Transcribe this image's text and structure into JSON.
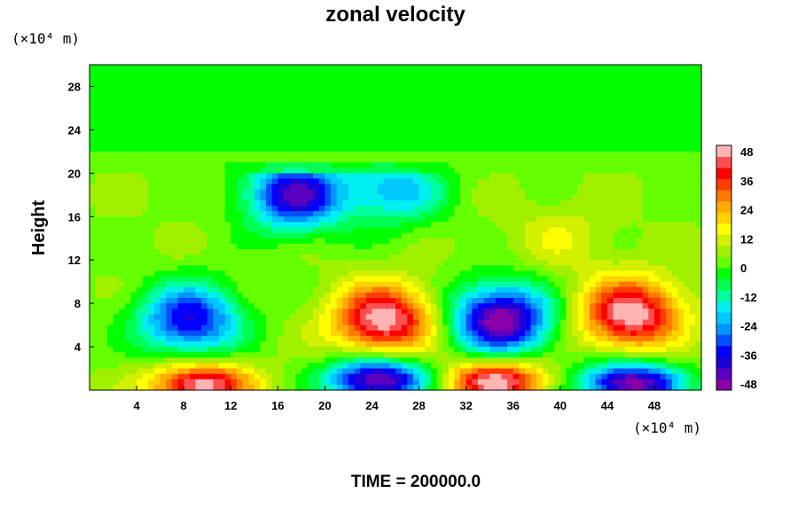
{
  "chart_data": {
    "type": "heatmap",
    "title": "zonal velocity",
    "ylabel": "Height",
    "x_unit_label": "(×10⁴ m)",
    "y_unit_label": "(×10⁴ m)",
    "xlim": [
      0,
      52
    ],
    "ylim": [
      0,
      30
    ],
    "x_ticks": [
      4,
      8,
      12,
      16,
      20,
      24,
      28,
      32,
      36,
      40,
      44,
      48
    ],
    "y_ticks": [
      4,
      8,
      12,
      16,
      20,
      24,
      28
    ],
    "colorbar": {
      "range": [
        -48,
        48
      ],
      "ticks": [
        48,
        36,
        24,
        12,
        0,
        -12,
        -24,
        -36,
        -48
      ]
    },
    "features": [
      {
        "x": 9.5,
        "y": 0.5,
        "value": 48
      },
      {
        "x": 24.5,
        "y": 1.0,
        "value": -48
      },
      {
        "x": 34.5,
        "y": 0.8,
        "value": 48
      },
      {
        "x": 46,
        "y": 0.6,
        "value": -48
      },
      {
        "x": 25,
        "y": 6.5,
        "value": 48
      },
      {
        "x": 46,
        "y": 7,
        "value": 48
      },
      {
        "x": 35,
        "y": 6.5,
        "value": -48
      },
      {
        "x": 8.5,
        "y": 6.5,
        "value": -36
      },
      {
        "x": 17.5,
        "y": 18,
        "value": -40
      },
      {
        "x": 26,
        "y": 18.5,
        "value": -20
      },
      {
        "x": 40,
        "y": 14,
        "value": 12
      }
    ],
    "footer": "TIME = 200000.0"
  }
}
